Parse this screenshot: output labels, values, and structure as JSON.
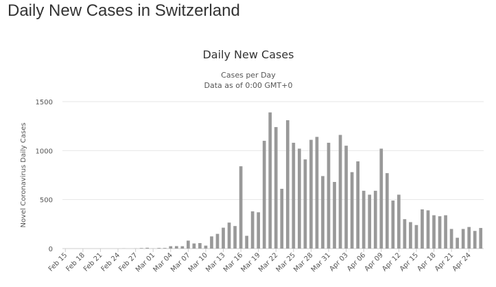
{
  "page": {
    "title": "Daily New Cases in Switzerland"
  },
  "colors": {
    "bar": "#999999",
    "grid": "#e6e6e6",
    "axis": "#cccccc"
  },
  "chart_data": {
    "type": "bar",
    "title": "Daily New Cases",
    "subtitle": [
      "Cases per Day",
      "Data as of 0:00 GMT+0"
    ],
    "ylabel": "Novel Coronavirus Daily Cases",
    "xlabel": "",
    "ylim": [
      0,
      1500
    ],
    "yticks": [
      0,
      500,
      1000,
      1500
    ],
    "grid": true,
    "legend": "none",
    "tick_every": 3,
    "categories": [
      "Feb 15",
      "Feb 16",
      "Feb 17",
      "Feb 18",
      "Feb 19",
      "Feb 20",
      "Feb 21",
      "Feb 22",
      "Feb 23",
      "Feb 24",
      "Feb 25",
      "Feb 26",
      "Feb 27",
      "Feb 28",
      "Feb 29",
      "Mar 01",
      "Mar 02",
      "Mar 03",
      "Mar 04",
      "Mar 05",
      "Mar 06",
      "Mar 07",
      "Mar 08",
      "Mar 09",
      "Mar 10",
      "Mar 11",
      "Mar 12",
      "Mar 13",
      "Mar 14",
      "Mar 15",
      "Mar 16",
      "Mar 17",
      "Mar 18",
      "Mar 19",
      "Mar 20",
      "Mar 21",
      "Mar 22",
      "Mar 23",
      "Mar 24",
      "Mar 25",
      "Mar 26",
      "Mar 27",
      "Mar 28",
      "Mar 29",
      "Mar 30",
      "Mar 31",
      "Apr 01",
      "Apr 02",
      "Apr 03",
      "Apr 04",
      "Apr 05",
      "Apr 06",
      "Apr 07",
      "Apr 08",
      "Apr 09",
      "Apr 10",
      "Apr 11",
      "Apr 12",
      "Apr 13",
      "Apr 14",
      "Apr 15",
      "Apr 16",
      "Apr 17",
      "Apr 18",
      "Apr 19",
      "Apr 20",
      "Apr 21",
      "Apr 22",
      "Apr 23",
      "Apr 24",
      "Apr 25",
      "Apr 26"
    ],
    "series": [
      {
        "values": [
          0,
          0,
          0,
          0,
          0,
          0,
          0,
          0,
          0,
          0,
          1,
          0,
          1,
          5,
          8,
          1,
          6,
          6,
          24,
          25,
          24,
          81,
          52,
          56,
          30,
          124,
          150,
          213,
          265,
          230,
          840,
          130,
          380,
          370,
          1100,
          1390,
          1240,
          610,
          1310,
          1080,
          1020,
          910,
          1110,
          1140,
          740,
          1080,
          680,
          1160,
          1050,
          780,
          890,
          590,
          550,
          590,
          1020,
          770,
          490,
          550,
          300,
          270,
          240,
          400,
          390,
          340,
          330,
          340,
          200,
          110,
          200,
          220,
          180,
          210
        ]
      }
    ]
  }
}
